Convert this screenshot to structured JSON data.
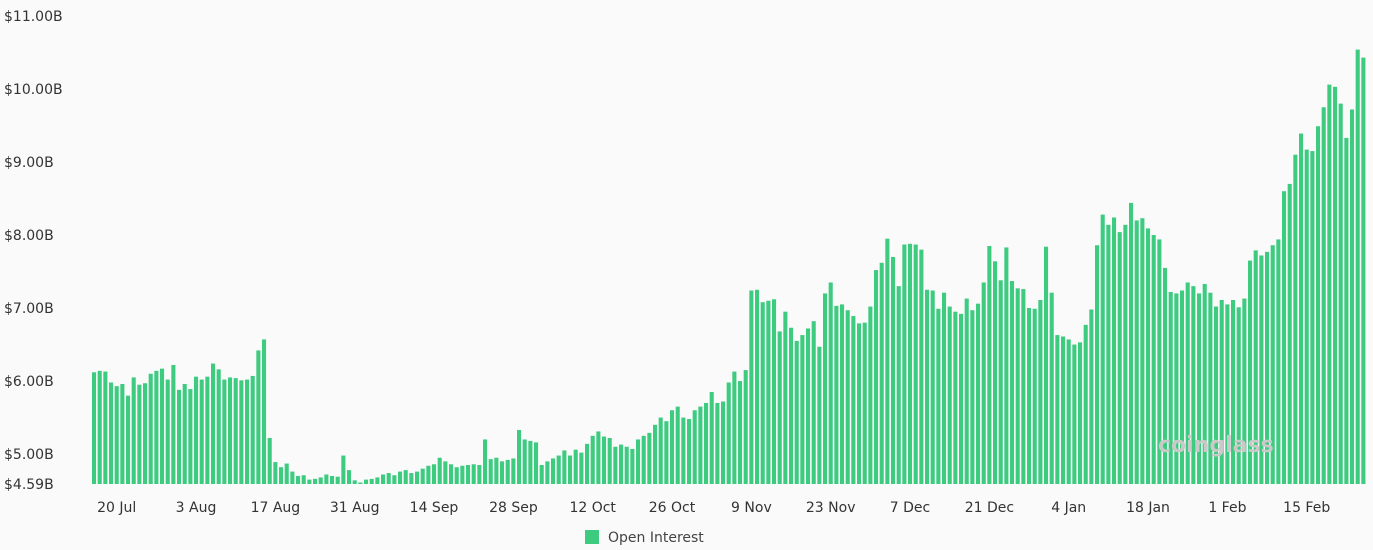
{
  "chart_data": {
    "type": "bar",
    "title": "",
    "xlabel": "",
    "ylabel": "",
    "color": "#3ccb7f",
    "ylim": [
      4.59,
      11.0
    ],
    "y_ticks": [
      {
        "value": 11.0,
        "label": "$11.00B"
      },
      {
        "value": 10.0,
        "label": "$10.00B"
      },
      {
        "value": 9.0,
        "label": "$9.00B"
      },
      {
        "value": 8.0,
        "label": "$8.00B"
      },
      {
        "value": 7.0,
        "label": "$7.00B"
      },
      {
        "value": 6.0,
        "label": "$6.00B"
      },
      {
        "value": 5.0,
        "label": "$5.00B"
      },
      {
        "value": 4.59,
        "label": "$4.59B"
      }
    ],
    "x_ticks": [
      {
        "index": 4,
        "label": "20 Jul"
      },
      {
        "index": 18,
        "label": "3 Aug"
      },
      {
        "index": 32,
        "label": "17 Aug"
      },
      {
        "index": 46,
        "label": "31 Aug"
      },
      {
        "index": 60,
        "label": "14 Sep"
      },
      {
        "index": 74,
        "label": "28 Sep"
      },
      {
        "index": 88,
        "label": "12 Oct"
      },
      {
        "index": 102,
        "label": "26 Oct"
      },
      {
        "index": 116,
        "label": "9 Nov"
      },
      {
        "index": 130,
        "label": "23 Nov"
      },
      {
        "index": 144,
        "label": "7 Dec"
      },
      {
        "index": 158,
        "label": "21 Dec"
      },
      {
        "index": 172,
        "label": "4 Jan"
      },
      {
        "index": 186,
        "label": "18 Jan"
      },
      {
        "index": 200,
        "label": "1 Feb"
      },
      {
        "index": 214,
        "label": "15 Feb"
      }
    ],
    "legend": {
      "label": "Open Interest",
      "position": "bottom-center"
    },
    "watermark": "coinglass",
    "series": [
      {
        "name": "Open Interest",
        "values": [
          6.12,
          6.14,
          6.13,
          5.98,
          5.93,
          5.96,
          5.8,
          6.05,
          5.95,
          5.97,
          6.1,
          6.14,
          6.17,
          6.02,
          6.22,
          5.88,
          5.96,
          5.89,
          6.06,
          6.02,
          6.06,
          6.24,
          6.16,
          6.02,
          6.05,
          6.04,
          6.01,
          6.02,
          6.07,
          6.42,
          6.57,
          5.22,
          4.89,
          4.82,
          4.87,
          4.76,
          4.7,
          4.71,
          4.65,
          4.66,
          4.68,
          4.72,
          4.7,
          4.69,
          4.98,
          4.78,
          4.64,
          4.61,
          4.65,
          4.66,
          4.68,
          4.72,
          4.74,
          4.71,
          4.76,
          4.78,
          4.74,
          4.76,
          4.8,
          4.84,
          4.86,
          4.95,
          4.9,
          4.86,
          4.82,
          4.84,
          4.85,
          4.86,
          4.85,
          5.2,
          4.93,
          4.95,
          4.9,
          4.92,
          4.94,
          5.33,
          5.2,
          5.18,
          5.16,
          4.85,
          4.9,
          4.94,
          4.98,
          5.05,
          4.98,
          5.06,
          5.02,
          5.14,
          5.25,
          5.31,
          5.24,
          5.22,
          5.1,
          5.13,
          5.1,
          5.07,
          5.2,
          5.25,
          5.29,
          5.4,
          5.5,
          5.45,
          5.6,
          5.65,
          5.5,
          5.48,
          5.6,
          5.65,
          5.7,
          5.85,
          5.7,
          5.72,
          5.98,
          6.13,
          6.0,
          6.15,
          7.24,
          7.25,
          7.08,
          7.1,
          7.12,
          6.68,
          6.95,
          6.73,
          6.55,
          6.63,
          6.72,
          6.82,
          6.47,
          7.2,
          7.35,
          7.03,
          7.05,
          6.97,
          6.89,
          6.79,
          6.8,
          7.02,
          7.52,
          7.62,
          7.95,
          7.7,
          7.3,
          7.87,
          7.88,
          7.87,
          7.8,
          7.25,
          7.24,
          6.99,
          7.21,
          7.02,
          6.95,
          6.92,
          7.13,
          6.97,
          7.06,
          7.35,
          7.85,
          7.64,
          7.38,
          7.83,
          7.37,
          7.27,
          7.26,
          7.0,
          6.99,
          7.11,
          7.84,
          7.21,
          6.63,
          6.61,
          6.57,
          6.5,
          6.53,
          6.77,
          6.98,
          7.86,
          8.28,
          8.14,
          8.24,
          8.04,
          8.14,
          8.44,
          8.2,
          8.23,
          8.09,
          8.0,
          7.94,
          7.55,
          7.22,
          7.2,
          7.24,
          7.35,
          7.3,
          7.2,
          7.33,
          7.21,
          7.02,
          7.11,
          7.05,
          7.11,
          7.01,
          7.13,
          7.65,
          7.79,
          7.72,
          7.77,
          7.86,
          7.94,
          8.6,
          8.7,
          9.1,
          9.39,
          9.17,
          9.15,
          9.49,
          9.75,
          10.06,
          10.03,
          9.8,
          9.33,
          9.72,
          10.54,
          10.43
        ]
      }
    ]
  }
}
